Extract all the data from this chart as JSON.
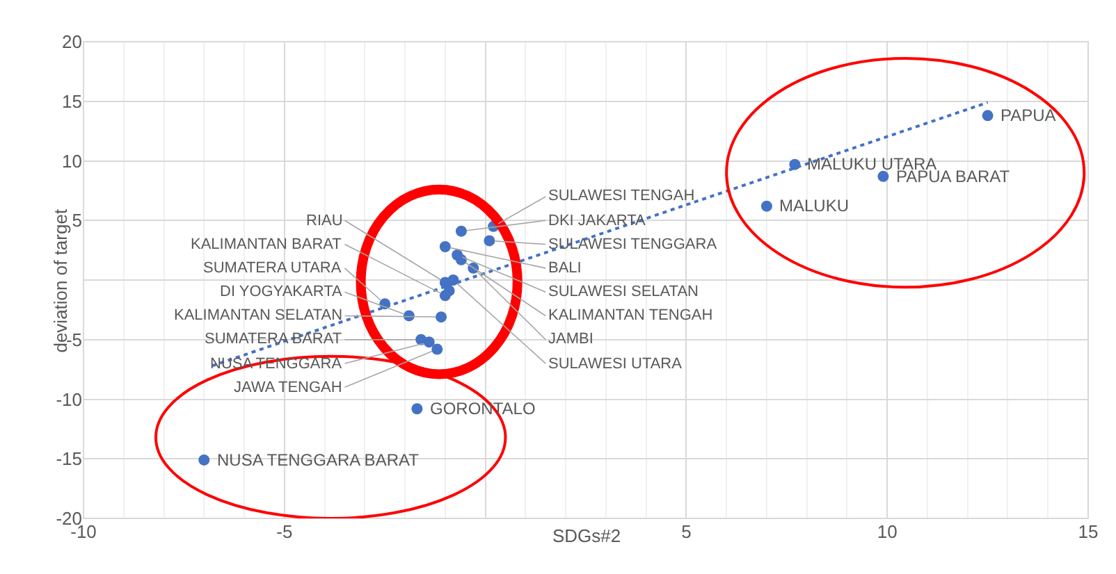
{
  "chart_data": {
    "type": "scatter",
    "xlabel": "SDGs#2",
    "ylabel": "deviation of target",
    "xlim": [
      -10,
      15
    ],
    "ylim": [
      -20,
      20
    ],
    "xticks": [
      -10,
      -5,
      {
        "value": 0,
        "label": null
      },
      5,
      10,
      15
    ],
    "yticks": [
      -20,
      -15,
      -10,
      -5,
      {
        "value": 0,
        "label": null
      },
      5,
      10,
      15,
      20
    ],
    "grid": true,
    "marker": "circle",
    "series": [
      {
        "color": "#4472c4",
        "x": [
          12.5,
          7.7,
          9.9,
          7.0,
          -7.0,
          -1.7,
          0.2,
          -0.6,
          0.1,
          -1.0,
          -0.7,
          -0.6,
          -0.3,
          -0.8,
          -1.0,
          -1.0,
          -0.9,
          -2.5,
          -1.1,
          -1.9,
          -1.4,
          -1.6,
          -1.2
        ],
        "values": [
          13.8,
          9.7,
          8.7,
          6.2,
          -15.1,
          -10.8,
          4.5,
          4.1,
          3.3,
          2.8,
          2.1,
          1.7,
          1.0,
          0.0,
          -0.2,
          -1.3,
          -0.9,
          -2.0,
          -3.1,
          -3.0,
          -5.2,
          -5.0,
          -5.8
        ]
      },
      {
        "type": "line",
        "color": "#4472c4",
        "line_style": "dotted",
        "marker": "none",
        "x": [
          -6.8,
          12.5
        ],
        "values": [
          -7.2,
          14.9
        ]
      }
    ],
    "annotations": [
      {
        "text": "PAPUA",
        "x": 12.5,
        "y": 13.8
      },
      {
        "text": "MALUKU UTARA",
        "x": 7.7,
        "y": 9.7
      },
      {
        "text": "PAPUA BARAT",
        "x": 9.9,
        "y": 8.7
      },
      {
        "text": "MALUKU",
        "x": 7.0,
        "y": 6.2
      },
      {
        "text": "NUSA TENGGARA BARAT",
        "x": -7.0,
        "y": -15.1
      },
      {
        "text": "GORONTALO",
        "x": -1.7,
        "y": -10.8
      },
      {
        "text": "SULAWESI TENGAH",
        "x": 0.2,
        "y": 4.5
      },
      {
        "text": "DKI JAKARTA",
        "x": -0.6,
        "y": 4.1
      },
      {
        "text": "SULAWESI TENGGARA",
        "x": 0.1,
        "y": 3.3
      },
      {
        "text": "BALI",
        "x": -1.0,
        "y": 2.8
      },
      {
        "text": "SULAWESI SELATAN",
        "x": -0.7,
        "y": 2.1
      },
      {
        "text": "KALIMANTAN TENGAH",
        "x": -0.6,
        "y": 1.7
      },
      {
        "text": "JAMBI",
        "x": -0.3,
        "y": 1.0
      },
      {
        "text": "SULAWESI UTARA",
        "x": -0.8,
        "y": 0.0
      },
      {
        "text": "RIAU",
        "x": -1.0,
        "y": -0.2
      },
      {
        "text": "KALIMANTAN BARAT",
        "x": -1.0,
        "y": -1.3
      },
      {
        "text": "SUMATERA UTARA",
        "x": -2.5,
        "y": -2.0
      },
      {
        "text": "KALIMANTAN SELATAN",
        "x": -1.1,
        "y": -3.1
      },
      {
        "text": "DI YOGYAKARTA",
        "x": -1.9,
        "y": -3.0
      },
      {
        "text": "NUSA TENGGARA",
        "x": -1.4,
        "y": -5.2
      },
      {
        "text": "SUMATERA BARAT",
        "x": -1.6,
        "y": -5.0
      },
      {
        "text": "JAWA TENGAH",
        "x": -1.2,
        "y": -5.8
      }
    ]
  }
}
